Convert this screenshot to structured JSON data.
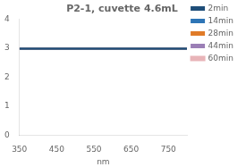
{
  "chart_data": {
    "type": "line",
    "title": "P2-1, cuvette 4.6mL",
    "xlabel": "nm",
    "x": [
      350,
      800
    ],
    "series": [
      {
        "name": "2min",
        "color": "#1f4e79",
        "values": [
          2.98,
          2.98
        ]
      },
      {
        "name": "14min",
        "color": "#2e75b6",
        "values": [
          2.98,
          2.98
        ]
      },
      {
        "name": "28min",
        "color": "#e07b28",
        "values": [
          2.98,
          2.98
        ]
      },
      {
        "name": "44min",
        "color": "#9b7fb6",
        "values": [
          2.98,
          2.98
        ]
      },
      {
        "name": "60min",
        "color": "#e8b4b8",
        "values": [
          2.98,
          2.98
        ]
      }
    ],
    "xlim": [
      350,
      800
    ],
    "xticks": [
      350,
      450,
      550,
      650,
      750
    ],
    "ylim": [
      0,
      4
    ],
    "yticks": [
      0,
      1,
      2,
      3,
      4
    ],
    "grid": false,
    "legend": "right"
  }
}
